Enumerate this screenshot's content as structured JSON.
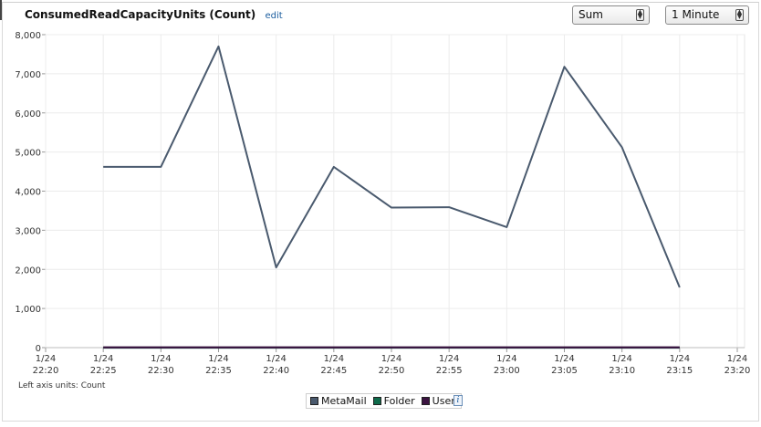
{
  "widget": {
    "title": "ConsumedReadCapacityUnits (Count)",
    "edit_label": "edit",
    "statistic_select": "Sum",
    "period_select": "1 Minute",
    "units_note": "Left axis units: Count"
  },
  "chart_data": {
    "type": "line",
    "title": "ConsumedReadCapacityUnits (Count)",
    "xlabel": "",
    "ylabel": "",
    "ylim": [
      0,
      8000
    ],
    "y_ticks": [
      "8,000",
      "7,000",
      "6,000",
      "5,000",
      "4,000",
      "3,000",
      "2,000",
      "1,000",
      "0"
    ],
    "y_tick_values": [
      8000,
      7000,
      6000,
      5000,
      4000,
      3000,
      2000,
      1000,
      0
    ],
    "x_ticks": [
      {
        "date": "1/24",
        "time": "22:20"
      },
      {
        "date": "1/24",
        "time": "22:25"
      },
      {
        "date": "1/24",
        "time": "22:30"
      },
      {
        "date": "1/24",
        "time": "22:35"
      },
      {
        "date": "1/24",
        "time": "22:40"
      },
      {
        "date": "1/24",
        "time": "22:45"
      },
      {
        "date": "1/24",
        "time": "22:50"
      },
      {
        "date": "1/24",
        "time": "22:55"
      },
      {
        "date": "1/24",
        "time": "23:00"
      },
      {
        "date": "1/24",
        "time": "23:05"
      },
      {
        "date": "1/24",
        "time": "23:10"
      },
      {
        "date": "1/24",
        "time": "23:15"
      },
      {
        "date": "1/24",
        "time": "23:20"
      }
    ],
    "grid": true,
    "legend_position": "bottom-center",
    "series": [
      {
        "name": "MetaMail",
        "color": "#4a5a6e",
        "points": [
          {
            "x": "22:25",
            "y": 4620
          },
          {
            "x": "22:30",
            "y": 4620
          },
          {
            "x": "22:35",
            "y": 7700
          },
          {
            "x": "22:40",
            "y": 2050
          },
          {
            "x": "22:45",
            "y": 4620
          },
          {
            "x": "22:50",
            "y": 3580
          },
          {
            "x": "22:55",
            "y": 3590
          },
          {
            "x": "23:00",
            "y": 3080
          },
          {
            "x": "23:05",
            "y": 7180
          },
          {
            "x": "23:10",
            "y": 5120
          },
          {
            "x": "23:15",
            "y": 1540
          }
        ]
      },
      {
        "name": "Folder",
        "color": "#0f6b4b",
        "points": [
          {
            "x": "22:25",
            "y": 0
          },
          {
            "x": "22:30",
            "y": 0
          },
          {
            "x": "22:35",
            "y": 0
          },
          {
            "x": "22:40",
            "y": 0
          },
          {
            "x": "22:45",
            "y": 0
          },
          {
            "x": "22:50",
            "y": 0
          },
          {
            "x": "22:55",
            "y": 0
          },
          {
            "x": "23:00",
            "y": 0
          },
          {
            "x": "23:05",
            "y": 0
          },
          {
            "x": "23:10",
            "y": 0
          },
          {
            "x": "23:15",
            "y": 0
          }
        ]
      },
      {
        "name": "User",
        "color": "#3b1340",
        "points": [
          {
            "x": "22:25",
            "y": 5
          },
          {
            "x": "22:30",
            "y": 5
          },
          {
            "x": "22:35",
            "y": 5
          },
          {
            "x": "22:40",
            "y": 5
          },
          {
            "x": "22:45",
            "y": 5
          },
          {
            "x": "22:50",
            "y": 5
          },
          {
            "x": "22:55",
            "y": 5
          },
          {
            "x": "23:00",
            "y": 5
          },
          {
            "x": "23:05",
            "y": 5
          },
          {
            "x": "23:10",
            "y": 5
          },
          {
            "x": "23:15",
            "y": 5
          }
        ]
      }
    ]
  }
}
